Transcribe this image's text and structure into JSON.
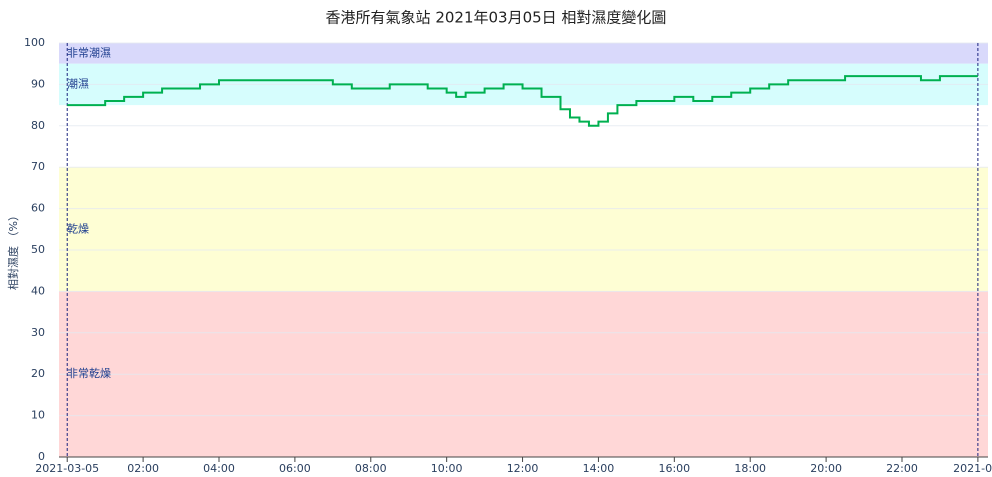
{
  "chart_data": {
    "type": "line",
    "title": "香港所有氣象站 2021年03月05日 相對濕度變化圖",
    "y_label": "相對濕度 （%）",
    "x": [
      "2021-03-05T00:00",
      "2021-03-05T00:30",
      "2021-03-05T01:00",
      "2021-03-05T01:30",
      "2021-03-05T02:00",
      "2021-03-05T02:30",
      "2021-03-05T03:00",
      "2021-03-05T03:30",
      "2021-03-05T04:00",
      "2021-03-05T05:00",
      "2021-03-05T06:00",
      "2021-03-05T07:00",
      "2021-03-05T07:30",
      "2021-03-05T08:00",
      "2021-03-05T08:30",
      "2021-03-05T09:00",
      "2021-03-05T09:30",
      "2021-03-05T10:00",
      "2021-03-05T10:15",
      "2021-03-05T10:30",
      "2021-03-05T11:00",
      "2021-03-05T11:30",
      "2021-03-05T12:00",
      "2021-03-05T12:30",
      "2021-03-05T13:00",
      "2021-03-05T13:15",
      "2021-03-05T13:30",
      "2021-03-05T13:45",
      "2021-03-05T14:00",
      "2021-03-05T14:15",
      "2021-03-05T14:30",
      "2021-03-05T15:00",
      "2021-03-05T15:30",
      "2021-03-05T16:00",
      "2021-03-05T16:30",
      "2021-03-05T17:00",
      "2021-03-05T17:30",
      "2021-03-05T18:00",
      "2021-03-05T18:30",
      "2021-03-05T19:00",
      "2021-03-05T19:30",
      "2021-03-05T20:00",
      "2021-03-05T20:30",
      "2021-03-05T22:00",
      "2021-03-05T22:30",
      "2021-03-05T23:00",
      "2021-03-06T00:00"
    ],
    "series": [
      {
        "name": "相對濕度",
        "color": "#00b050",
        "values": [
          85,
          85,
          86,
          87,
          88,
          89,
          89,
          90,
          91,
          91,
          91,
          90,
          89,
          89,
          90,
          90,
          89,
          88,
          87,
          88,
          89,
          90,
          89,
          87,
          84,
          82,
          81,
          80,
          81,
          83,
          85,
          86,
          86,
          87,
          86,
          87,
          88,
          89,
          90,
          91,
          91,
          91,
          92,
          92,
          91,
          92,
          92
        ]
      }
    ],
    "xlim": [
      "2021-03-04T23:47",
      "2021-03-06T00:16"
    ],
    "xticks": [
      {
        "value": "2021-03-05T00:00",
        "label": "2021-03-05"
      },
      {
        "value": "2021-03-05T02:00",
        "label": "02:00"
      },
      {
        "value": "2021-03-05T04:00",
        "label": "04:00"
      },
      {
        "value": "2021-03-05T06:00",
        "label": "06:00"
      },
      {
        "value": "2021-03-05T08:00",
        "label": "08:00"
      },
      {
        "value": "2021-03-05T10:00",
        "label": "10:00"
      },
      {
        "value": "2021-03-05T12:00",
        "label": "12:00"
      },
      {
        "value": "2021-03-05T14:00",
        "label": "14:00"
      },
      {
        "value": "2021-03-05T16:00",
        "label": "16:00"
      },
      {
        "value": "2021-03-05T18:00",
        "label": "18:00"
      },
      {
        "value": "2021-03-05T20:00",
        "label": "20:00"
      },
      {
        "value": "2021-03-05T22:00",
        "label": "22:00"
      },
      {
        "value": "2021-03-06T00:00",
        "label": "2021-0..."
      }
    ],
    "ylim": [
      0,
      100
    ],
    "yticks": [
      0,
      10,
      20,
      30,
      40,
      50,
      60,
      70,
      80,
      90,
      100
    ],
    "grid": true,
    "bands": [
      {
        "name": "非常潮濕",
        "range": [
          95,
          100
        ],
        "color": "#d9d9fb"
      },
      {
        "name": "潮濕",
        "range": [
          85,
          95
        ],
        "color": "#d6fdfd"
      },
      {
        "name": "乾燥",
        "range": [
          40,
          70
        ],
        "color": "#fefed4"
      },
      {
        "name": "非常乾燥",
        "range": [
          0,
          40
        ],
        "color": "#ffd7d7"
      }
    ],
    "vlines": [
      "2021-03-05T00:00",
      "2021-03-06T00:00"
    ]
  }
}
